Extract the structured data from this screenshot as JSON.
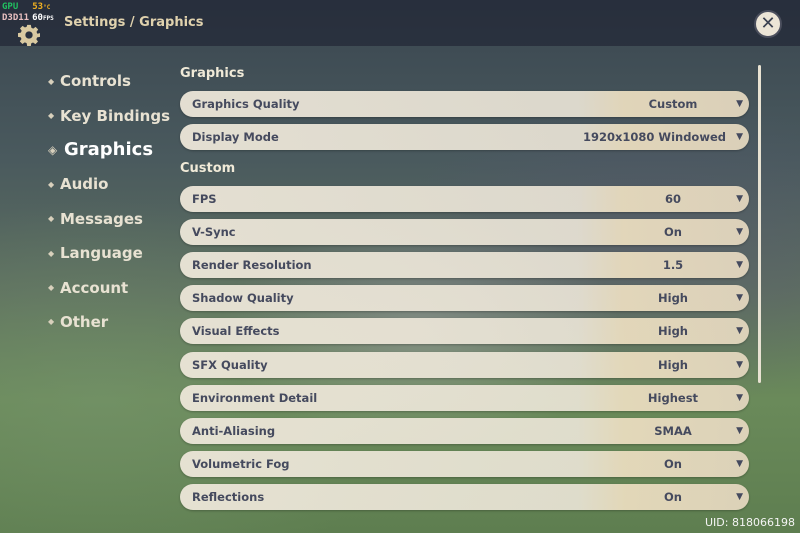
{
  "overlay": {
    "gpu_label": "GPU",
    "gpu_temp": "53",
    "temp_unit": "°C",
    "api": "D3D11",
    "fps": "60",
    "fps_unit": "FPS"
  },
  "header": {
    "title": "Settings / Graphics",
    "gear_icon": "gear-icon",
    "close_icon": "close-icon"
  },
  "nav": [
    {
      "label": "Controls"
    },
    {
      "label": "Key Bindings"
    },
    {
      "label": "Graphics",
      "active": true
    },
    {
      "label": "Audio"
    },
    {
      "label": "Messages"
    },
    {
      "label": "Language"
    },
    {
      "label": "Account"
    },
    {
      "label": "Other"
    }
  ],
  "sections": {
    "graphics": "Graphics",
    "custom": "Custom"
  },
  "graphics_rows": [
    {
      "label": "Graphics Quality",
      "value": "Custom"
    },
    {
      "label": "Display Mode",
      "value": "1920x1080 Windowed"
    }
  ],
  "custom_rows": [
    {
      "label": "FPS",
      "value": "60"
    },
    {
      "label": "V-Sync",
      "value": "On"
    },
    {
      "label": "Render Resolution",
      "value": "1.5"
    },
    {
      "label": "Shadow Quality",
      "value": "High"
    },
    {
      "label": "Visual Effects",
      "value": "High"
    },
    {
      "label": "SFX Quality",
      "value": "High"
    },
    {
      "label": "Environment Detail",
      "value": "Highest"
    },
    {
      "label": "Anti-Aliasing",
      "value": "SMAA"
    },
    {
      "label": "Volumetric Fog",
      "value": "On"
    },
    {
      "label": "Reflections",
      "value": "On"
    }
  ],
  "dropdown_arrow": "▼",
  "uid": "UID: 818066198"
}
